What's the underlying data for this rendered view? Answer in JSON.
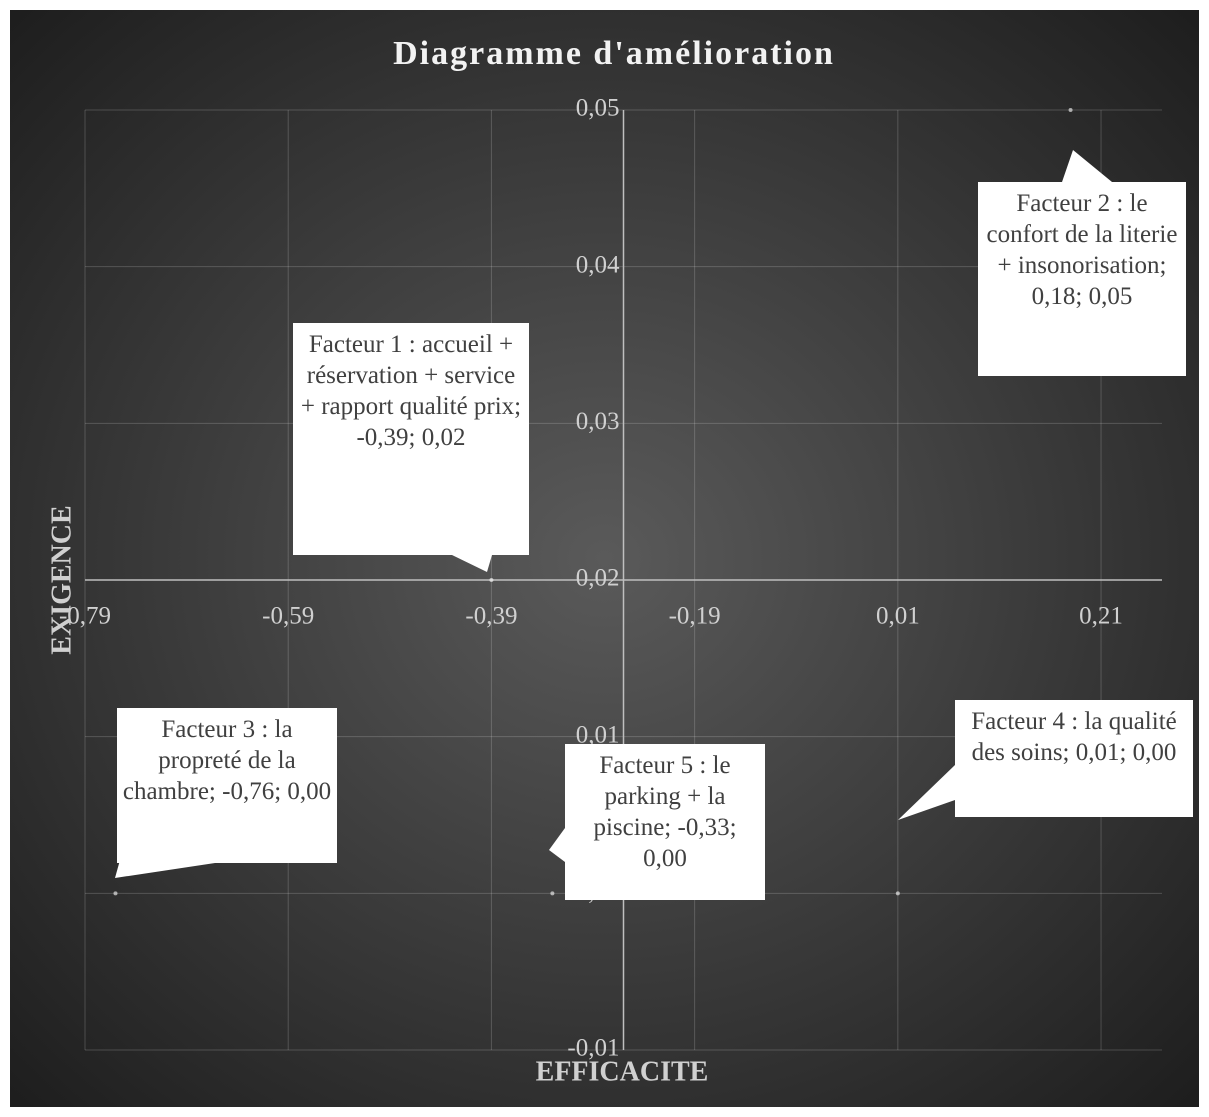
{
  "chart_data": {
    "type": "scatter",
    "title": "Diagramme d'amélioration",
    "x_label": "EFFICACITE",
    "y_label": "EXIGENCE",
    "x": [
      -0.39,
      0.18,
      -0.76,
      0.01,
      -0.33
    ],
    "values": [
      0.02,
      0.05,
      0,
      0,
      0
    ],
    "value_labels": [
      "Facteur 1 : accueil + réservation + service + rapport qualité prix; -0,39; 0,02",
      "Facteur 2 : le confort de la literie  + insonorisation; 0,18; 0,05",
      "Facteur 3 : la propreté de la chambre; -0,76; 0,00",
      "Facteur 4 : la qualité des soins; 0,01; 0,00",
      "Facteur 5 : le parking + la piscine; -0,33; 0,00"
    ],
    "xlim": [
      -0.79,
      0.27
    ],
    "ylim": [
      -0.01,
      0.05
    ],
    "xticks": [
      {
        "value": -0.79,
        "label": "-0,79"
      },
      {
        "value": -0.59,
        "label": "-0,59"
      },
      {
        "value": -0.39,
        "label": "-0,39"
      },
      {
        "value": -0.19,
        "label": "-0,19"
      },
      {
        "value": 0.01,
        "label": "0,01"
      },
      {
        "value": 0.21,
        "label": "0,21"
      }
    ],
    "yticks": [
      {
        "value": -0.01,
        "label": "-0,01"
      },
      {
        "value": 0,
        "label": "0,00"
      },
      {
        "value": 0.01,
        "label": "0,01"
      },
      {
        "value": 0.02,
        "label": "0,02"
      },
      {
        "value": 0.03,
        "label": "0,03"
      },
      {
        "value": 0.04,
        "label": "0,04"
      },
      {
        "value": 0.05,
        "label": "0,05"
      }
    ],
    "x_axis_crosses_y": 0.02,
    "y_axis_crosses_x": -0.26,
    "grid": true
  }
}
